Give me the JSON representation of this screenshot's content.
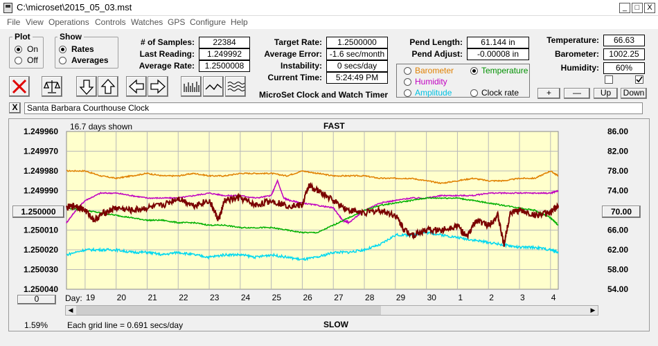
{
  "window": {
    "title": "C:\\microset\\2015_05_03.mst",
    "minimize": "_",
    "maximize": "□",
    "close": "X"
  },
  "menu": [
    "File",
    "View",
    "Operations",
    "Controls",
    "Watches",
    "GPS",
    "Configure",
    "Help"
  ],
  "plot_group": {
    "title": "Plot",
    "options": [
      "On",
      "Off"
    ],
    "selected": "On"
  },
  "show_group": {
    "title": "Show",
    "options": [
      "Rates",
      "Averages"
    ],
    "selected": "Rates"
  },
  "stats": {
    "samples_label": "# of Samples:",
    "samples": "22384",
    "last_label": "Last Reading:",
    "last": "1.249992",
    "avg_rate_label": "Average Rate:",
    "avg_rate": "1.2500008"
  },
  "rates": {
    "target_label": "Target Rate:",
    "target": "1.2500000",
    "avg_error_label": "Average Error:",
    "avg_error": "-1.6 sec/month",
    "instability_label": "Instability:",
    "instability": "0 secs/day",
    "time_label": "Current Time:",
    "time": "5:24:49 PM",
    "caption": "MicroSet Clock and Watch Timer"
  },
  "pendulum": {
    "length_label": "Pend Length:",
    "length": "61.144 in",
    "adjust_label": "Pend Adjust:",
    "adjust": "-0.00008 in"
  },
  "sensor_select": {
    "options": [
      {
        "label": "Barometer",
        "color": "#e08000",
        "selected": false
      },
      {
        "label": "Temperature",
        "color": "#009000",
        "selected": true
      },
      {
        "label": "Humidity",
        "color": "#c000c0",
        "selected": false
      },
      {
        "label": "Clock rate",
        "color": "#000000",
        "selected": false
      },
      {
        "label": "Amplitude",
        "color": "#00c0e0",
        "selected": false
      }
    ]
  },
  "environment": {
    "temp_label": "Temperature:",
    "temp": "66.63",
    "baro_label": "Barometer:",
    "baro": "1002.25",
    "hum_label": "Humidity:",
    "hum": "60%"
  },
  "adjust_buttons": {
    "plus": "+",
    "minus": "—",
    "up": "Up",
    "down": "Down"
  },
  "clock_name": "Santa Barbara Courthouse Clock",
  "clear_label": "X",
  "chart_data": {
    "type": "line",
    "top_label": "FAST",
    "bottom_label": "SLOW",
    "days_shown": "16.7 days shown",
    "grid_note": "Each grid line = 0.691 secs/day",
    "percent": "1.59%",
    "left_axis": {
      "ticks": [
        "1.249960",
        "1.249970",
        "1.249980",
        "1.249990",
        "1.250000",
        "1.250010",
        "1.250020",
        "1.250030",
        "1.250040"
      ],
      "range": [
        1.24996,
        1.25004
      ],
      "inverted": true
    },
    "left_center_button": "1.250000",
    "right_axis": {
      "ticks": [
        "86.00",
        "82.00",
        "78.00",
        "74.00",
        "70.00",
        "66.00",
        "62.00",
        "58.00",
        "54.00"
      ],
      "range": [
        54,
        86
      ]
    },
    "right_center_button": "70.00",
    "zero_button": "0",
    "day_prefix": "Day:",
    "days": [
      "19",
      "20",
      "21",
      "22",
      "23",
      "24",
      "25",
      "26",
      "27",
      "28",
      "29",
      "30",
      "1",
      "2",
      "3",
      "4"
    ],
    "day_x": [
      0,
      1,
      2,
      3,
      4,
      5,
      6,
      7,
      8,
      9,
      10,
      11,
      12,
      13,
      14,
      15
    ],
    "x_range": [
      -0.6,
      15.25
    ],
    "grid": true,
    "series": [
      {
        "color": "#e08000",
        "x": [
          -0.6,
          0,
          0.5,
          1,
          1.5,
          2,
          2.5,
          3,
          3.5,
          4,
          4.5,
          5,
          5.5,
          6,
          6.5,
          7,
          7.5,
          8,
          8.5,
          9,
          9.5,
          10,
          10.5,
          11,
          11.5,
          12,
          12.5,
          13,
          13.5,
          14,
          14.5,
          15,
          15.25
        ],
        "y": [
          78.0,
          78.0,
          77.0,
          76.5,
          77.0,
          77.5,
          77.0,
          77.0,
          77.5,
          77.0,
          77.0,
          77.5,
          77.5,
          77.5,
          77.0,
          78.0,
          77.5,
          77.0,
          77.0,
          77.0,
          76.5,
          76.5,
          76.5,
          76.0,
          75.5,
          76.0,
          76.5,
          76.0,
          76.0,
          76.5,
          76.5,
          78.0,
          77.0
        ]
      },
      {
        "color": "#c000c0",
        "x": [
          -0.6,
          -0.3,
          0,
          0.5,
          1,
          1.5,
          2,
          2.5,
          3,
          3.5,
          4,
          4.5,
          5,
          5.5,
          6,
          6.2,
          6.4,
          6.6,
          7,
          7.5,
          8,
          8.3,
          8.5,
          9,
          9.5,
          10,
          10.5,
          11,
          11.5,
          12,
          12.5,
          13,
          13.5,
          14,
          14.5,
          15,
          15.25
        ],
        "y": [
          67.5,
          70.0,
          72.0,
          73.5,
          73.5,
          73.0,
          72.5,
          72.5,
          72.5,
          73.0,
          73.5,
          73.0,
          73.0,
          72.5,
          73.0,
          76.0,
          72.5,
          72.0,
          71.5,
          71.0,
          70.5,
          68.0,
          67.5,
          70.0,
          71.5,
          72.0,
          72.5,
          72.5,
          73.0,
          73.0,
          73.0,
          73.5,
          73.5,
          73.5,
          73.5,
          73.5,
          74.0
        ]
      },
      {
        "color": "#00b000",
        "x": [
          -0.6,
          0,
          0.5,
          1,
          1.5,
          2,
          2.5,
          3,
          3.5,
          4,
          4.5,
          5,
          5.5,
          6,
          6.5,
          7,
          7.5,
          8,
          8.5,
          9,
          9.5,
          10,
          10.5,
          11,
          11.5,
          12,
          12.5,
          13,
          13.5,
          14,
          14.5,
          15,
          15.25
        ],
        "y": [
          70.5,
          70.0,
          69.5,
          69.0,
          68.5,
          68.0,
          68.0,
          67.5,
          67.5,
          67.0,
          67.0,
          66.5,
          66.5,
          66.5,
          66.0,
          65.5,
          65.5,
          67.0,
          68.5,
          70.0,
          71.0,
          71.5,
          72.0,
          72.5,
          72.5,
          72.5,
          72.0,
          71.5,
          71.0,
          70.5,
          70.0,
          68.5,
          67.0
        ]
      },
      {
        "color": "#00d8f0",
        "x": [
          -0.6,
          0,
          0.5,
          1,
          1.5,
          2,
          2.5,
          3,
          3.5,
          4,
          4.5,
          5,
          5.5,
          6,
          6.5,
          7,
          7.5,
          8,
          8.5,
          9,
          9.5,
          10,
          10.5,
          11,
          11.5,
          12,
          12.5,
          13,
          13.5,
          14,
          14.5,
          15,
          15.25
        ],
        "y": [
          61.0,
          62.0,
          62.0,
          62.0,
          61.5,
          61.5,
          61.0,
          61.5,
          61.0,
          60.5,
          61.0,
          61.0,
          60.5,
          61.0,
          60.5,
          60.0,
          60.5,
          61.5,
          61.5,
          62.0,
          63.0,
          65.0,
          65.0,
          65.5,
          65.0,
          64.5,
          64.0,
          63.5,
          63.0,
          62.5,
          62.5,
          62.0,
          61.5
        ]
      },
      {
        "color": "#7a0000",
        "x": [
          -0.6,
          -0.3,
          0,
          0.3,
          0.6,
          1,
          1.5,
          2,
          2.5,
          3,
          3.5,
          4,
          4.3,
          4.5,
          5,
          5.5,
          6,
          6.5,
          7,
          7.2,
          7.5,
          8,
          8.5,
          9,
          9.5,
          10,
          10.3,
          10.6,
          11,
          11.5,
          12,
          12.3,
          12.6,
          13,
          13.3,
          13.5,
          13.7,
          14,
          14.5,
          15,
          15.25
        ],
        "y": [
          70.5,
          71.0,
          70.0,
          68.0,
          69.5,
          70.5,
          70.0,
          70.5,
          71.0,
          72.5,
          71.0,
          72.0,
          68.0,
          72.0,
          72.5,
          71.0,
          72.0,
          71.0,
          71.0,
          75.0,
          74.0,
          72.0,
          70.0,
          69.5,
          70.0,
          69.0,
          66.0,
          65.0,
          66.0,
          66.0,
          67.0,
          64.5,
          68.0,
          67.0,
          69.0,
          63.0,
          69.5,
          70.0,
          69.0,
          69.5,
          71.0
        ]
      }
    ]
  }
}
